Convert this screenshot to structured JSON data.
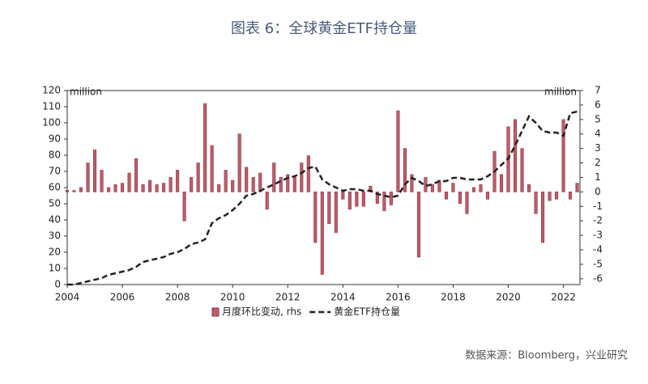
{
  "chart_data": {
    "type": "combo",
    "title": "图表 6：全球黄金ETF持仓量",
    "ylabel": "million",
    "y2label": "million",
    "source": "数据来源：Bloomberg，兴业研究",
    "x": [
      2004,
      2004.25,
      2004.5,
      2004.75,
      2005,
      2005.25,
      2005.5,
      2005.75,
      2006,
      2006.25,
      2006.5,
      2006.75,
      2007,
      2007.25,
      2007.5,
      2007.75,
      2008,
      2008.25,
      2008.5,
      2008.75,
      2009,
      2009.25,
      2009.5,
      2009.75,
      2010,
      2010.25,
      2010.5,
      2010.75,
      2011,
      2011.25,
      2011.5,
      2011.75,
      2012,
      2012.25,
      2012.5,
      2012.75,
      2013,
      2013.25,
      2013.5,
      2013.75,
      2014,
      2014.25,
      2014.5,
      2014.75,
      2015,
      2015.25,
      2015.5,
      2015.75,
      2016,
      2016.25,
      2016.5,
      2016.75,
      2017,
      2017.25,
      2017.5,
      2017.75,
      2018,
      2018.25,
      2018.5,
      2018.75,
      2019,
      2019.25,
      2019.5,
      2019.75,
      2020,
      2020.25,
      2020.5,
      2020.75,
      2021,
      2021.25,
      2021.5,
      2021.75,
      2022,
      2022.25,
      2022.5
    ],
    "series": [
      {
        "name": "月度环比变动, rhs",
        "type": "bar",
        "axis": "y2",
        "color": "#9c2b3c",
        "values": [
          0.1,
          0.1,
          0.3,
          2.0,
          2.9,
          1.5,
          0.3,
          0.5,
          0.6,
          1.3,
          2.3,
          0.5,
          0.8,
          0.5,
          0.6,
          1.0,
          1.5,
          -2.0,
          1.0,
          2.0,
          6.1,
          3.2,
          0.5,
          1.5,
          0.8,
          4.0,
          1.7,
          1.0,
          1.3,
          -1.2,
          2.0,
          1.0,
          1.2,
          1.0,
          2.0,
          2.5,
          -3.5,
          -5.7,
          -2.2,
          -2.8,
          -0.5,
          -1.2,
          -1.0,
          -1.0,
          0.4,
          -0.8,
          -1.3,
          -0.9,
          5.6,
          3.0,
          1.2,
          -4.5,
          1.0,
          0.5,
          0.8,
          -0.5,
          0.6,
          -0.8,
          -1.5,
          0.3,
          0.5,
          -0.5,
          2.8,
          1.2,
          4.5,
          5.0,
          3.0,
          0.5,
          -1.5,
          -3.5,
          -0.6,
          -0.5,
          5.0,
          -0.5,
          0.6
        ]
      },
      {
        "name": "黄金ETF持仓量",
        "type": "line",
        "color": "#222222",
        "values": [
          0,
          0,
          1,
          2,
          3,
          4,
          6,
          7,
          8,
          9,
          11,
          14,
          15,
          16,
          17,
          19,
          20,
          22,
          25,
          26,
          28,
          38,
          41,
          43,
          46,
          50,
          55,
          56,
          58,
          60,
          62,
          64,
          66,
          67,
          69,
          72,
          73,
          65,
          62,
          60,
          58,
          59,
          59,
          58,
          58,
          56,
          55,
          54,
          55,
          62,
          66,
          64,
          61,
          62,
          64,
          64,
          66,
          66,
          65,
          65,
          65,
          67,
          70,
          74,
          78,
          86,
          95,
          104,
          100,
          95,
          94,
          94,
          92,
          106,
          107
        ]
      }
    ],
    "xlim": [
      2004,
      2022.6
    ],
    "xticks": [
      2004,
      2006,
      2008,
      2010,
      2012,
      2014,
      2016,
      2018,
      2020,
      2022
    ],
    "ylim": [
      0,
      120
    ],
    "yticks": [
      0,
      10,
      20,
      30,
      40,
      50,
      60,
      70,
      80,
      90,
      100,
      110,
      120
    ],
    "y2lim": [
      -6.4,
      7
    ],
    "y2ticks": [
      -6,
      -5,
      -4,
      -3,
      -2,
      -1,
      0,
      1,
      2,
      3,
      4,
      5,
      6,
      7
    ],
    "legend": "bottom"
  }
}
